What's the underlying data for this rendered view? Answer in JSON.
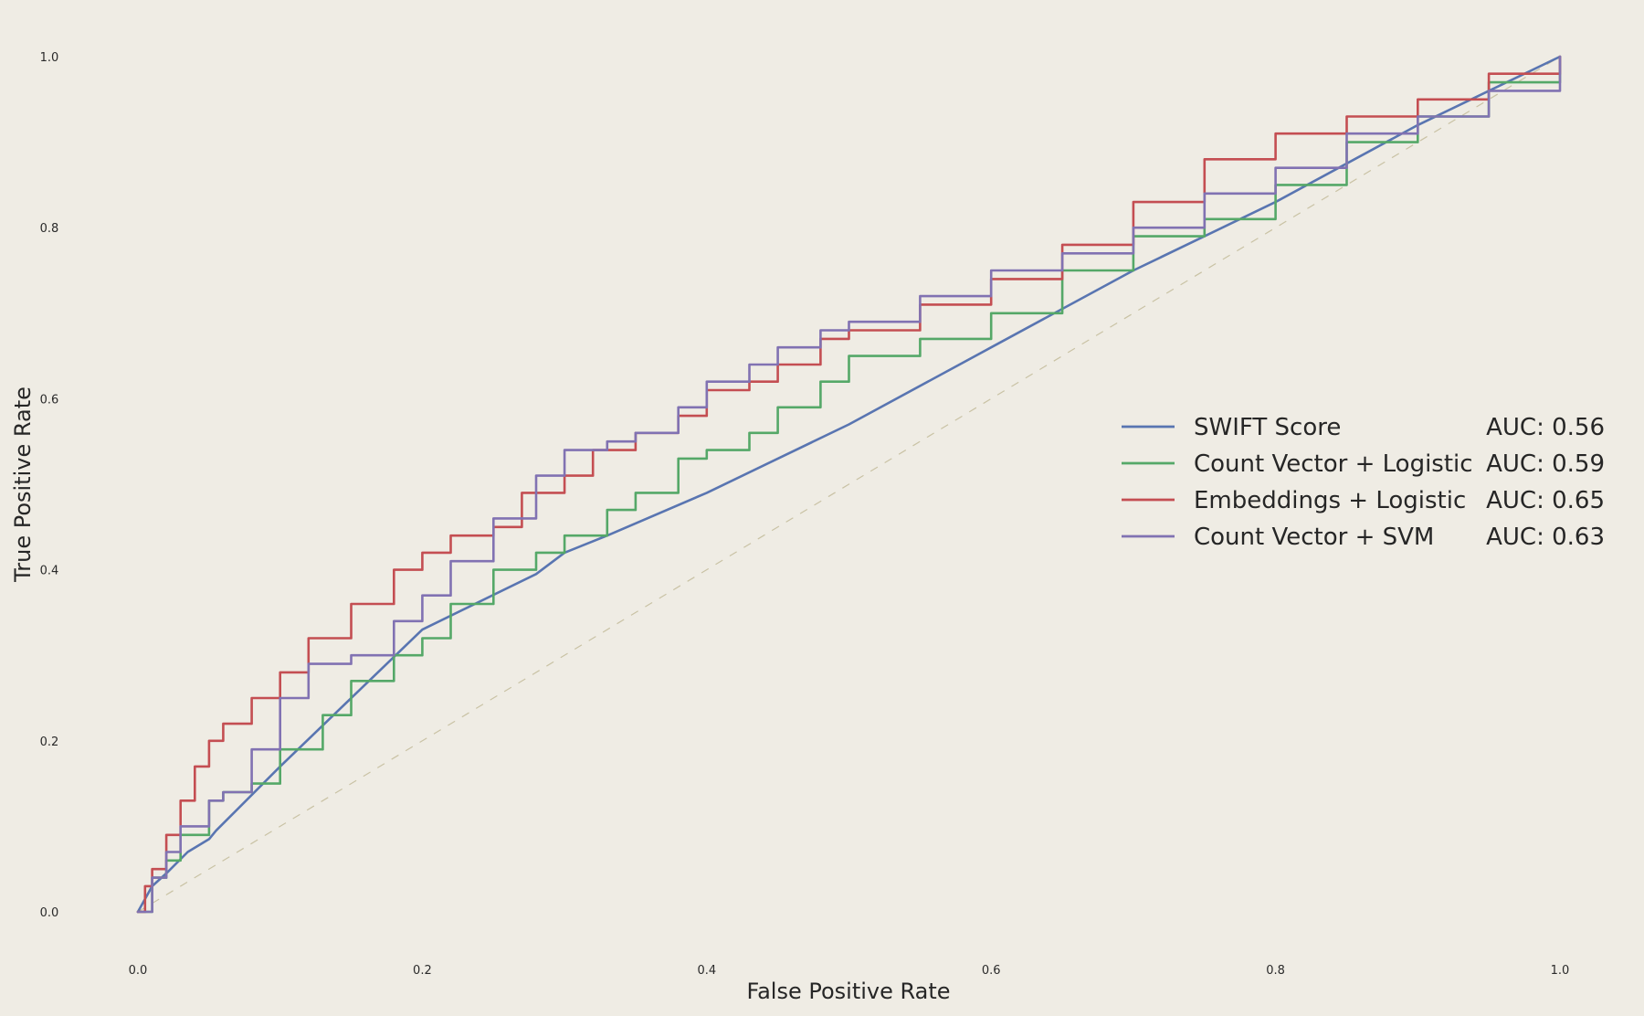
{
  "chart_data": {
    "type": "line",
    "title": "",
    "xlabel": "False Positive Rate",
    "ylabel": "True Positive Rate",
    "xlim": [
      0.0,
      1.0
    ],
    "ylim": [
      0.0,
      1.0
    ],
    "xticks": [
      "0.0",
      "0.2",
      "0.4",
      "0.6",
      "0.8",
      "1.0"
    ],
    "yticks": [
      "0.0",
      "0.2",
      "0.4",
      "0.6",
      "0.8",
      "1.0"
    ],
    "grid": false,
    "legend_position": "center-right",
    "diagonal_reference": true,
    "series": [
      {
        "name": "SWIFT Score",
        "auc_label": "AUC: 0.56",
        "color": "#5975b1",
        "step": false,
        "x": [
          0.0,
          0.01,
          0.02,
          0.035,
          0.05,
          0.055,
          0.1,
          0.2,
          0.28,
          0.3,
          0.33,
          0.4,
          0.5,
          0.6,
          0.7,
          0.8,
          0.9,
          1.0
        ],
        "y": [
          0.0,
          0.03,
          0.045,
          0.07,
          0.085,
          0.095,
          0.17,
          0.33,
          0.395,
          0.42,
          0.44,
          0.49,
          0.57,
          0.66,
          0.75,
          0.83,
          0.92,
          1.0
        ]
      },
      {
        "name": "Count Vector + Logistic",
        "auc_label": "AUC: 0.59",
        "color": "#55a868",
        "step": true,
        "x": [
          0.0,
          0.01,
          0.02,
          0.03,
          0.05,
          0.06,
          0.08,
          0.1,
          0.13,
          0.15,
          0.18,
          0.2,
          0.22,
          0.25,
          0.28,
          0.3,
          0.33,
          0.35,
          0.38,
          0.4,
          0.43,
          0.45,
          0.48,
          0.5,
          0.55,
          0.6,
          0.65,
          0.7,
          0.75,
          0.8,
          0.85,
          0.9,
          0.95,
          1.0
        ],
        "y": [
          0.0,
          0.04,
          0.06,
          0.09,
          0.13,
          0.14,
          0.15,
          0.19,
          0.23,
          0.27,
          0.3,
          0.32,
          0.36,
          0.4,
          0.42,
          0.44,
          0.47,
          0.49,
          0.53,
          0.54,
          0.56,
          0.59,
          0.62,
          0.65,
          0.67,
          0.7,
          0.75,
          0.79,
          0.81,
          0.85,
          0.9,
          0.93,
          0.97,
          1.0
        ]
      },
      {
        "name": "Embeddings + Logistic",
        "auc_label": "AUC: 0.65",
        "color": "#c44e52",
        "step": true,
        "x": [
          0.0,
          0.005,
          0.01,
          0.02,
          0.03,
          0.04,
          0.05,
          0.06,
          0.08,
          0.1,
          0.12,
          0.15,
          0.18,
          0.2,
          0.22,
          0.25,
          0.27,
          0.3,
          0.32,
          0.35,
          0.38,
          0.4,
          0.43,
          0.45,
          0.48,
          0.5,
          0.55,
          0.6,
          0.65,
          0.7,
          0.75,
          0.8,
          0.85,
          0.9,
          0.95,
          1.0
        ],
        "y": [
          0.0,
          0.03,
          0.05,
          0.09,
          0.13,
          0.17,
          0.2,
          0.22,
          0.25,
          0.28,
          0.32,
          0.36,
          0.4,
          0.42,
          0.44,
          0.45,
          0.49,
          0.51,
          0.54,
          0.56,
          0.58,
          0.61,
          0.62,
          0.64,
          0.67,
          0.68,
          0.71,
          0.74,
          0.78,
          0.83,
          0.88,
          0.91,
          0.93,
          0.95,
          0.98,
          1.0
        ]
      },
      {
        "name": "Count Vector + SVM",
        "auc_label": "AUC: 0.63",
        "color": "#8172b2",
        "step": true,
        "x": [
          0.0,
          0.01,
          0.02,
          0.03,
          0.05,
          0.06,
          0.08,
          0.1,
          0.12,
          0.15,
          0.18,
          0.2,
          0.22,
          0.25,
          0.28,
          0.3,
          0.33,
          0.35,
          0.38,
          0.4,
          0.43,
          0.45,
          0.48,
          0.5,
          0.55,
          0.6,
          0.65,
          0.7,
          0.75,
          0.8,
          0.85,
          0.9,
          0.95,
          1.0
        ],
        "y": [
          0.0,
          0.04,
          0.07,
          0.1,
          0.13,
          0.14,
          0.19,
          0.25,
          0.29,
          0.3,
          0.34,
          0.37,
          0.41,
          0.46,
          0.51,
          0.54,
          0.55,
          0.56,
          0.59,
          0.62,
          0.64,
          0.66,
          0.68,
          0.69,
          0.72,
          0.75,
          0.77,
          0.8,
          0.84,
          0.87,
          0.91,
          0.93,
          0.96,
          1.0
        ]
      }
    ]
  }
}
